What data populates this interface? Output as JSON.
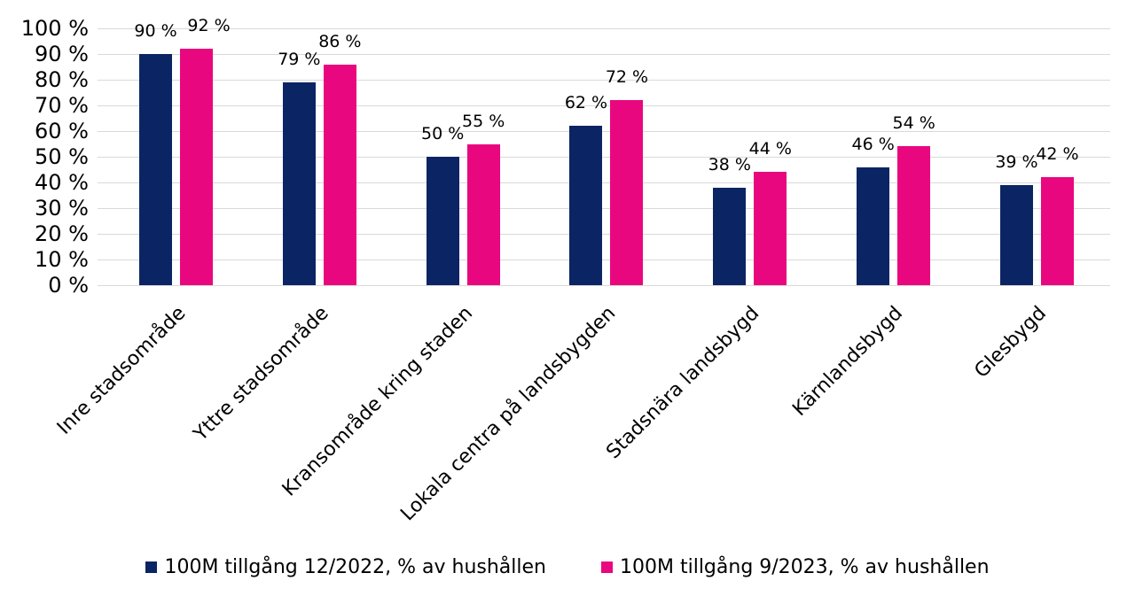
{
  "chart_data": {
    "type": "bar",
    "title": "",
    "xlabel": "",
    "ylabel": "",
    "grid": true,
    "legend_position": "bottom",
    "ylim": [
      0,
      100
    ],
    "ytick_step": 10,
    "yticks": [
      {
        "value": 0,
        "label": "0 %"
      },
      {
        "value": 10,
        "label": "10 %"
      },
      {
        "value": 20,
        "label": "20 %"
      },
      {
        "value": 30,
        "label": "30 %"
      },
      {
        "value": 40,
        "label": "40 %"
      },
      {
        "value": 50,
        "label": "50 %"
      },
      {
        "value": 60,
        "label": "60 %"
      },
      {
        "value": 70,
        "label": "70 %"
      },
      {
        "value": 80,
        "label": "80 %"
      },
      {
        "value": 90,
        "label": "90 %"
      },
      {
        "value": 100,
        "label": "100 %"
      }
    ],
    "categories": [
      "Inre stadsområde",
      "Yttre stadsområde",
      "Kransområde kring staden",
      "Lokala centra på landsbygden",
      "Stadsnära landsbygd",
      "Kärnlandsbygd",
      "Glesbygd"
    ],
    "series": [
      {
        "name": "100M tillgång 12/2022, % av hushållen",
        "color": "#0B2463",
        "values": [
          90,
          79,
          50,
          62,
          38,
          46,
          39
        ]
      },
      {
        "name": "100M tillgång 9/2023, % av hushållen",
        "color": "#E9077F",
        "values": [
          92,
          86,
          55,
          72,
          44,
          54,
          42
        ]
      }
    ],
    "data_label_suffix": " %",
    "colors": {
      "grid": "#D9D9D9",
      "text": "#000000",
      "background": "#FFFFFF"
    }
  }
}
